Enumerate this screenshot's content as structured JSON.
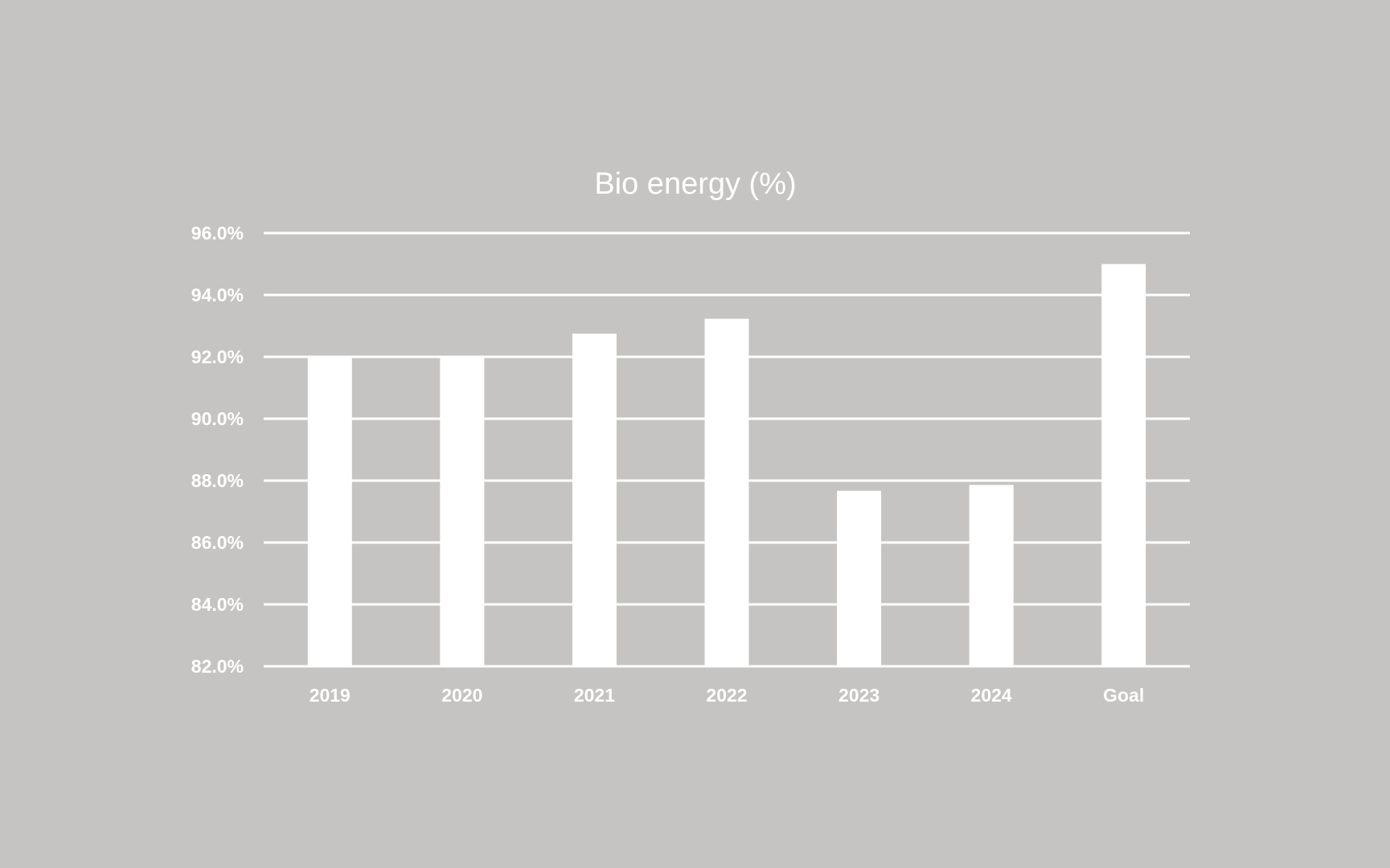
{
  "chart_data": {
    "type": "bar",
    "title": "Bio energy (%)",
    "categories": [
      "2019",
      "2020",
      "2021",
      "2022",
      "2023",
      "2024",
      "Goal"
    ],
    "values": [
      92.0,
      92.0,
      92.75,
      93.23,
      87.67,
      87.86,
      95.0
    ],
    "ylim": [
      82.0,
      96.0
    ],
    "yticks": [
      82.0,
      84.0,
      86.0,
      88.0,
      90.0,
      92.0,
      94.0,
      96.0
    ],
    "ytick_labels": [
      "82.0%",
      "84.0%",
      "86.0%",
      "88.0%",
      "90.0%",
      "92.0%",
      "94.0%",
      "96.0%"
    ],
    "grid": true,
    "legend": "none",
    "colors": {
      "background": "#c5c4c2",
      "bar": "#ffffff",
      "grid": "#ffffff",
      "text": "#ffffff"
    }
  }
}
